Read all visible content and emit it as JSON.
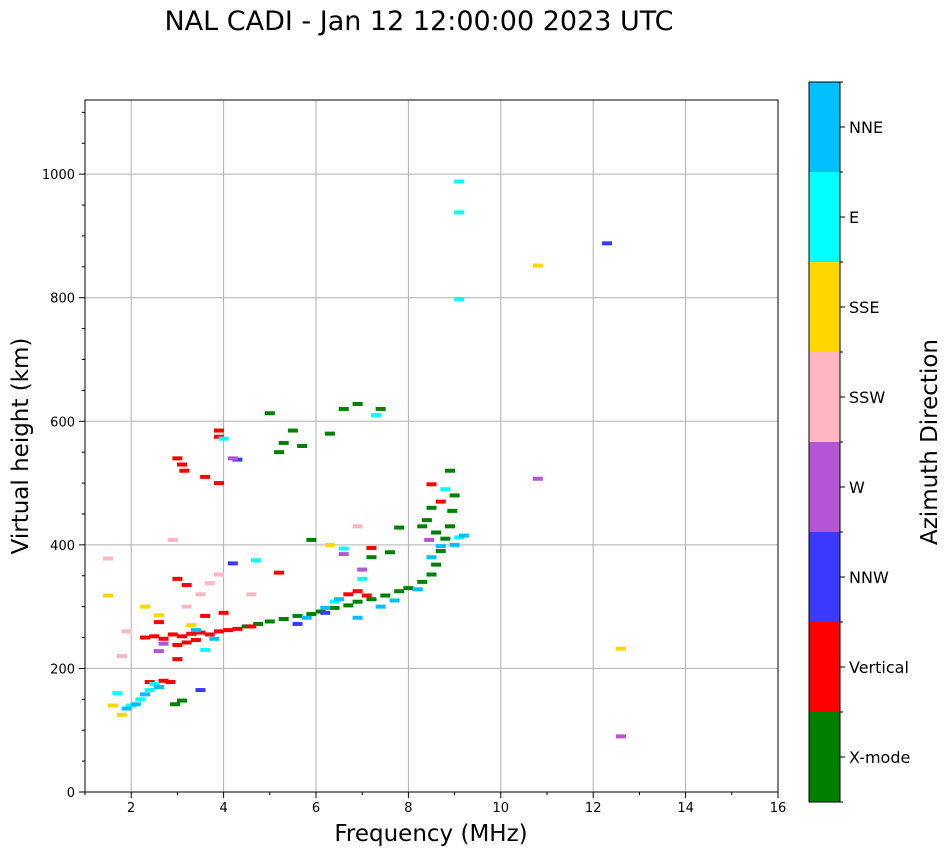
{
  "chart_data": {
    "type": "scatter",
    "title": "NAL CADI - Jan 12 12:00:00 2023 UTC",
    "xlabel": "Frequency (MHz)",
    "ylabel": "Virtual height (km)",
    "xlim": [
      1,
      16
    ],
    "ylim": [
      0,
      1120
    ],
    "xticks": [
      2,
      4,
      6,
      8,
      10,
      12,
      14,
      16
    ],
    "yticks": [
      0,
      200,
      400,
      600,
      800,
      1000
    ],
    "grid": true,
    "colorbar": {
      "label": "Azimuth Direction",
      "categories": [
        "X-mode",
        "Vertical",
        "NNW",
        "W",
        "SSW",
        "SSE",
        "E",
        "NNE"
      ],
      "colors": [
        "#008000",
        "#ff0000",
        "#3a3aff",
        "#b455d4",
        "#ffb6c1",
        "#ffd700",
        "#00ffff",
        "#00bfff"
      ]
    },
    "series": [
      {
        "name": "X-mode",
        "points": [
          [
            2.95,
            142
          ],
          [
            3.1,
            148
          ],
          [
            4.5,
            268
          ],
          [
            4.75,
            272
          ],
          [
            5.0,
            276
          ],
          [
            5.3,
            280
          ],
          [
            5.6,
            285
          ],
          [
            5.9,
            288
          ],
          [
            6.1,
            292
          ],
          [
            6.4,
            298
          ],
          [
            6.7,
            302
          ],
          [
            6.9,
            308
          ],
          [
            7.2,
            312
          ],
          [
            7.5,
            318
          ],
          [
            7.8,
            325
          ],
          [
            8.0,
            330
          ],
          [
            8.3,
            340
          ],
          [
            8.5,
            352
          ],
          [
            8.6,
            368
          ],
          [
            8.7,
            390
          ],
          [
            8.8,
            410
          ],
          [
            8.9,
            430
          ],
          [
            8.95,
            455
          ],
          [
            9.0,
            480
          ],
          [
            8.9,
            520
          ],
          [
            8.5,
            460
          ],
          [
            8.4,
            440
          ],
          [
            8.6,
            420
          ],
          [
            8.3,
            430
          ],
          [
            7.8,
            428
          ],
          [
            7.6,
            388
          ],
          [
            7.2,
            380
          ],
          [
            5.0,
            613
          ],
          [
            5.7,
            560
          ],
          [
            5.5,
            585
          ],
          [
            6.3,
            580
          ],
          [
            6.6,
            620
          ],
          [
            6.9,
            628
          ],
          [
            7.4,
            620
          ],
          [
            5.2,
            550
          ],
          [
            5.9,
            408
          ],
          [
            5.3,
            565
          ]
        ]
      },
      {
        "name": "Vertical",
        "points": [
          [
            2.3,
            250
          ],
          [
            2.5,
            252
          ],
          [
            2.7,
            248
          ],
          [
            2.9,
            255
          ],
          [
            3.1,
            252
          ],
          [
            3.3,
            256
          ],
          [
            3.5,
            258
          ],
          [
            3.7,
            255
          ],
          [
            3.9,
            260
          ],
          [
            4.1,
            262
          ],
          [
            4.3,
            264
          ],
          [
            4.6,
            268
          ],
          [
            3.0,
            238
          ],
          [
            3.2,
            242
          ],
          [
            3.4,
            246
          ],
          [
            2.6,
            275
          ],
          [
            3.6,
            285
          ],
          [
            4.0,
            290
          ],
          [
            3.0,
            540
          ],
          [
            3.1,
            530
          ],
          [
            3.15,
            520
          ],
          [
            3.6,
            510
          ],
          [
            3.9,
            500
          ],
          [
            3.9,
            585
          ],
          [
            3.9,
            575
          ],
          [
            5.2,
            355
          ],
          [
            6.7,
            320
          ],
          [
            6.9,
            325
          ],
          [
            7.1,
            318
          ],
          [
            7.2,
            395
          ],
          [
            8.5,
            498
          ],
          [
            8.7,
            470
          ],
          [
            3.0,
            215
          ],
          [
            2.85,
            178
          ],
          [
            3.0,
            345
          ],
          [
            3.2,
            335
          ],
          [
            2.4,
            178
          ],
          [
            2.7,
            180
          ]
        ]
      },
      {
        "name": "NNW",
        "points": [
          [
            3.5,
            165
          ],
          [
            12.3,
            888
          ],
          [
            4.3,
            538
          ],
          [
            6.2,
            290
          ],
          [
            5.6,
            272
          ],
          [
            4.2,
            370
          ]
        ]
      },
      {
        "name": "W",
        "points": [
          [
            10.8,
            507
          ],
          [
            12.6,
            90
          ],
          [
            8.45,
            408
          ],
          [
            4.2,
            540
          ],
          [
            6.6,
            385
          ],
          [
            7.0,
            360
          ],
          [
            2.7,
            240
          ],
          [
            2.6,
            228
          ]
        ]
      },
      {
        "name": "SSW",
        "points": [
          [
            1.5,
            378
          ],
          [
            1.8,
            220
          ],
          [
            1.9,
            260
          ],
          [
            2.9,
            408
          ],
          [
            3.7,
            338
          ],
          [
            3.9,
            352
          ],
          [
            6.9,
            430
          ],
          [
            3.5,
            320
          ],
          [
            4.6,
            320
          ],
          [
            3.2,
            300
          ]
        ]
      },
      {
        "name": "SSE",
        "points": [
          [
            10.8,
            852
          ],
          [
            12.6,
            232
          ],
          [
            1.5,
            318
          ],
          [
            1.6,
            140
          ],
          [
            1.8,
            125
          ],
          [
            2.3,
            300
          ],
          [
            2.6,
            286
          ],
          [
            3.3,
            270
          ],
          [
            6.3,
            400
          ]
        ]
      },
      {
        "name": "E",
        "points": [
          [
            9.1,
            988
          ],
          [
            9.1,
            938
          ],
          [
            9.1,
            798
          ],
          [
            1.7,
            160
          ],
          [
            2.0,
            140
          ],
          [
            2.2,
            150
          ],
          [
            2.4,
            165
          ],
          [
            2.5,
            175
          ],
          [
            3.6,
            230
          ],
          [
            4.0,
            572
          ],
          [
            4.7,
            375
          ],
          [
            6.6,
            394
          ],
          [
            7.0,
            345
          ],
          [
            7.3,
            610
          ],
          [
            8.8,
            490
          ],
          [
            9.1,
            412
          ],
          [
            6.4,
            308
          ]
        ]
      },
      {
        "name": "NNE",
        "points": [
          [
            1.9,
            135
          ],
          [
            2.1,
            142
          ],
          [
            2.3,
            158
          ],
          [
            2.6,
            170
          ],
          [
            3.4,
            262
          ],
          [
            3.8,
            248
          ],
          [
            5.8,
            282
          ],
          [
            6.2,
            298
          ],
          [
            6.5,
            312
          ],
          [
            6.9,
            282
          ],
          [
            7.4,
            300
          ],
          [
            7.7,
            310
          ],
          [
            8.2,
            328
          ],
          [
            8.5,
            380
          ],
          [
            8.7,
            398
          ],
          [
            9.0,
            400
          ],
          [
            9.2,
            415
          ]
        ]
      }
    ]
  }
}
